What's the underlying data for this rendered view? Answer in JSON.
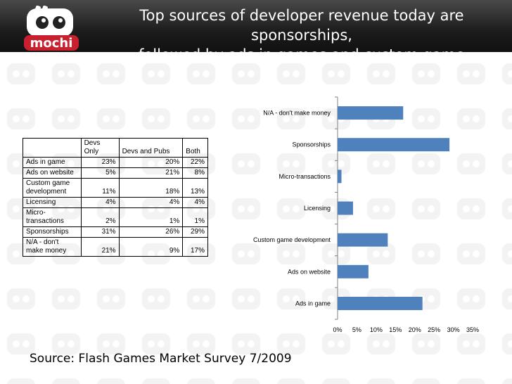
{
  "header": {
    "title_line1": "Top sources of developer revenue today are sponsorships,",
    "title_line2": "followed by ads in games and custom game development",
    "logo_text": "mochi"
  },
  "table": {
    "headers": [
      "",
      "Devs Only",
      "Devs and Pubs",
      "Both"
    ],
    "rows": [
      {
        "label": "Ads in game",
        "values": [
          "23%",
          "20%",
          "22%"
        ]
      },
      {
        "label": "Ads on website",
        "values": [
          "5%",
          "21%",
          "8%"
        ]
      },
      {
        "label": "Custom game development",
        "values": [
          "11%",
          "18%",
          "13%"
        ]
      },
      {
        "label": "Licensing",
        "values": [
          "4%",
          "4%",
          "4%"
        ]
      },
      {
        "label": "Micro-transactions",
        "values": [
          "2%",
          "1%",
          "1%"
        ]
      },
      {
        "label": "Sponsorships",
        "values": [
          "31%",
          "26%",
          "29%"
        ]
      },
      {
        "label": "N/A - don't make money",
        "values": [
          "21%",
          "9%",
          "17%"
        ]
      }
    ]
  },
  "chart_data": {
    "type": "bar",
    "orientation": "horizontal",
    "categories": [
      "N/A - don't make money",
      "Sponsorships",
      "Micro-transactions",
      "Licensing",
      "Custom game development",
      "Ads on website",
      "Ads in game"
    ],
    "values": [
      17,
      29,
      1,
      4,
      13,
      8,
      22
    ],
    "xlim": [
      0,
      35
    ],
    "xticks": [
      "0%",
      "5%",
      "10%",
      "15%",
      "20%",
      "25%",
      "30%",
      "35%"
    ],
    "bar_color": "#4f81bd",
    "title": "",
    "xlabel": "",
    "ylabel": ""
  },
  "footer": {
    "source": "Source: Flash Games Market Survey 7/2009"
  }
}
